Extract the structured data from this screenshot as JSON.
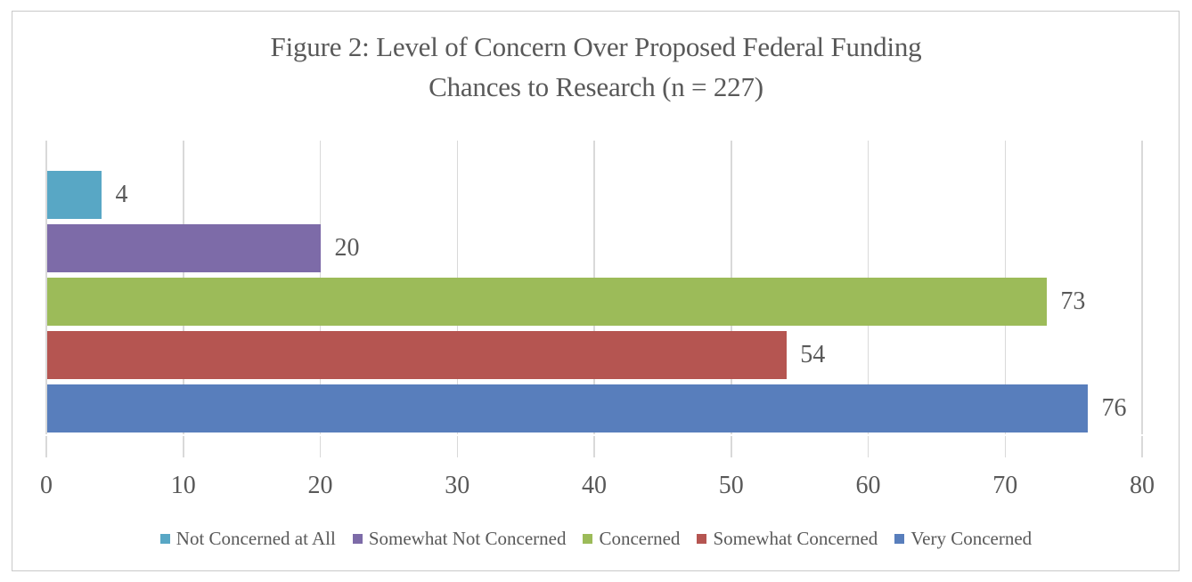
{
  "figure": {
    "title_line1": "Figure 2: Level of Concern Over Proposed Federal Funding",
    "title_line2": "Chances to Research (n = 227)"
  },
  "colors": {
    "text": "#595959",
    "gridline": "#D9D9D9",
    "frame_border": "#C9C9C9",
    "background": "#FFFFFF"
  },
  "chart_data": {
    "type": "bar",
    "orientation": "horizontal",
    "title": "Figure 2: Level of Concern Over Proposed Federal Funding Chances to Research (n = 227)",
    "sample_size_note": "n = 227",
    "categories": [
      "Not Concerned at All",
      "Somewhat Not Concerned",
      "Concerned",
      "Somewhat Concerned",
      "Very Concerned"
    ],
    "values": [
      4,
      20,
      73,
      54,
      76
    ],
    "colors": [
      "#58A7C5",
      "#7D6BA8",
      "#9CBB59",
      "#B55551",
      "#587EBC"
    ],
    "xlim": [
      0,
      80
    ],
    "xticks": [
      0,
      10,
      20,
      30,
      40,
      50,
      60,
      70,
      80
    ],
    "grid": true,
    "value_labels": true,
    "legend_position": "bottom",
    "legend_order": [
      "Not Concerned at All",
      "Somewhat Not Concerned",
      "Concerned",
      "Somewhat Concerned",
      "Very Concerned"
    ]
  }
}
